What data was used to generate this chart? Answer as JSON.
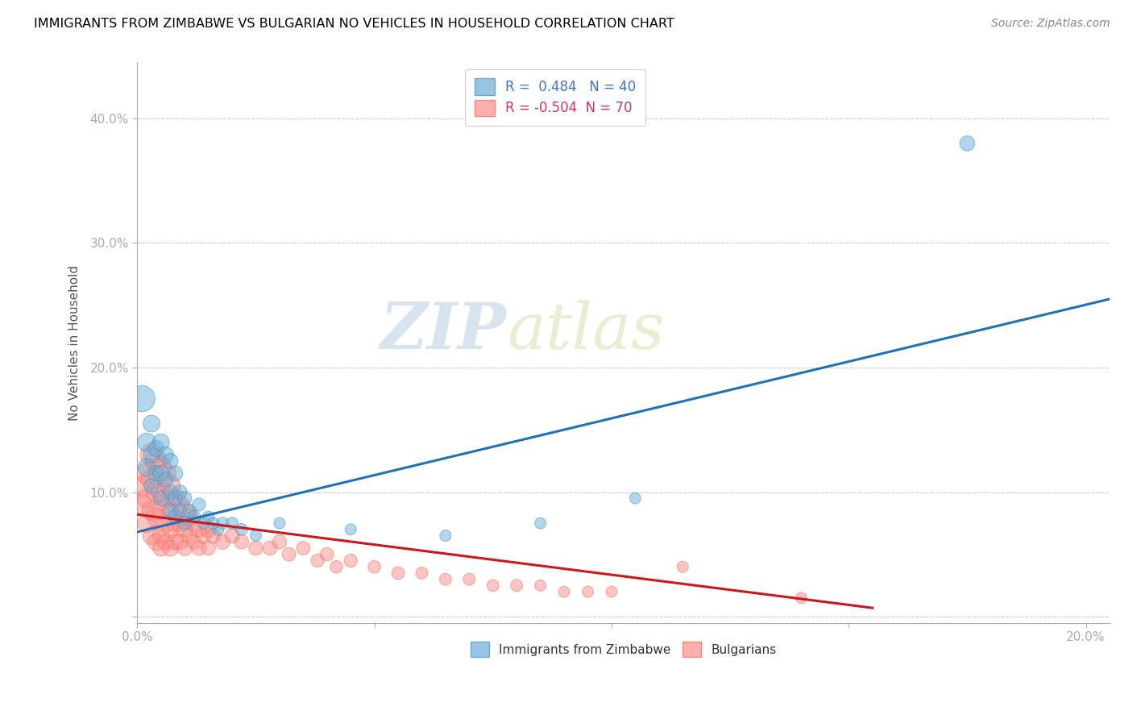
{
  "title": "IMMIGRANTS FROM ZIMBABWE VS BULGARIAN NO VEHICLES IN HOUSEHOLD CORRELATION CHART",
  "source": "Source: ZipAtlas.com",
  "ylabel": "No Vehicles in Household",
  "legend1_R": "0.484",
  "legend1_N": "40",
  "legend2_R": "-0.504",
  "legend2_N": "70",
  "blue_color": "#6baed6",
  "pink_color": "#fc8d8d",
  "blue_edge_color": "#4292c6",
  "pink_edge_color": "#fb6a4a",
  "watermark_zip": "ZIP",
  "watermark_atlas": "atlas",
  "xlim": [
    0.0,
    0.205
  ],
  "ylim": [
    -0.005,
    0.445
  ],
  "blue_line_x": [
    0.0,
    0.205
  ],
  "blue_line_y": [
    0.068,
    0.255
  ],
  "pink_line_x": [
    0.0,
    0.155
  ],
  "pink_line_y": [
    0.082,
    0.007
  ],
  "blue_scatter_x": [
    0.001,
    0.002,
    0.002,
    0.003,
    0.003,
    0.003,
    0.004,
    0.004,
    0.005,
    0.005,
    0.005,
    0.006,
    0.006,
    0.007,
    0.007,
    0.007,
    0.008,
    0.008,
    0.008,
    0.009,
    0.009,
    0.01,
    0.01,
    0.011,
    0.012,
    0.013,
    0.014,
    0.015,
    0.016,
    0.017,
    0.018,
    0.02,
    0.022,
    0.025,
    0.03,
    0.045,
    0.065,
    0.085,
    0.105,
    0.175
  ],
  "blue_scatter_y": [
    0.175,
    0.14,
    0.12,
    0.155,
    0.13,
    0.105,
    0.135,
    0.115,
    0.14,
    0.115,
    0.095,
    0.13,
    0.11,
    0.125,
    0.1,
    0.085,
    0.115,
    0.095,
    0.08,
    0.1,
    0.085,
    0.095,
    0.075,
    0.085,
    0.08,
    0.09,
    0.075,
    0.08,
    0.075,
    0.07,
    0.075,
    0.075,
    0.07,
    0.065,
    0.075,
    0.07,
    0.065,
    0.075,
    0.095,
    0.38
  ],
  "blue_scatter_sizes": [
    120,
    60,
    55,
    50,
    45,
    40,
    45,
    40,
    50,
    45,
    40,
    45,
    40,
    40,
    35,
    35,
    40,
    35,
    35,
    35,
    30,
    35,
    30,
    30,
    30,
    30,
    25,
    25,
    25,
    25,
    25,
    25,
    25,
    22,
    22,
    22,
    22,
    22,
    22,
    40
  ],
  "pink_scatter_x": [
    0.001,
    0.001,
    0.002,
    0.002,
    0.002,
    0.003,
    0.003,
    0.003,
    0.003,
    0.004,
    0.004,
    0.004,
    0.004,
    0.005,
    0.005,
    0.005,
    0.005,
    0.005,
    0.006,
    0.006,
    0.006,
    0.006,
    0.007,
    0.007,
    0.007,
    0.007,
    0.008,
    0.008,
    0.008,
    0.009,
    0.009,
    0.009,
    0.01,
    0.01,
    0.01,
    0.011,
    0.011,
    0.012,
    0.012,
    0.013,
    0.013,
    0.014,
    0.015,
    0.015,
    0.016,
    0.018,
    0.02,
    0.022,
    0.025,
    0.028,
    0.03,
    0.032,
    0.035,
    0.038,
    0.04,
    0.042,
    0.045,
    0.05,
    0.055,
    0.06,
    0.065,
    0.07,
    0.075,
    0.08,
    0.085,
    0.09,
    0.095,
    0.1,
    0.115,
    0.14
  ],
  "pink_scatter_y": [
    0.105,
    0.09,
    0.115,
    0.095,
    0.075,
    0.13,
    0.11,
    0.085,
    0.065,
    0.125,
    0.1,
    0.08,
    0.06,
    0.12,
    0.1,
    0.085,
    0.065,
    0.055,
    0.115,
    0.095,
    0.075,
    0.06,
    0.105,
    0.085,
    0.07,
    0.055,
    0.095,
    0.075,
    0.06,
    0.09,
    0.075,
    0.06,
    0.085,
    0.07,
    0.055,
    0.08,
    0.065,
    0.075,
    0.06,
    0.07,
    0.055,
    0.065,
    0.07,
    0.055,
    0.065,
    0.06,
    0.065,
    0.06,
    0.055,
    0.055,
    0.06,
    0.05,
    0.055,
    0.045,
    0.05,
    0.04,
    0.045,
    0.04,
    0.035,
    0.035,
    0.03,
    0.03,
    0.025,
    0.025,
    0.025,
    0.02,
    0.02,
    0.02,
    0.04,
    0.015
  ],
  "pink_scatter_sizes": [
    80,
    70,
    80,
    65,
    60,
    90,
    75,
    65,
    55,
    85,
    70,
    60,
    50,
    80,
    65,
    55,
    50,
    45,
    75,
    60,
    55,
    45,
    70,
    55,
    50,
    45,
    65,
    55,
    45,
    60,
    50,
    45,
    55,
    45,
    40,
    50,
    40,
    45,
    38,
    45,
    38,
    40,
    45,
    35,
    40,
    38,
    38,
    35,
    35,
    35,
    35,
    32,
    32,
    30,
    32,
    28,
    30,
    28,
    28,
    25,
    25,
    25,
    25,
    25,
    22,
    22,
    22,
    22,
    22,
    22
  ]
}
